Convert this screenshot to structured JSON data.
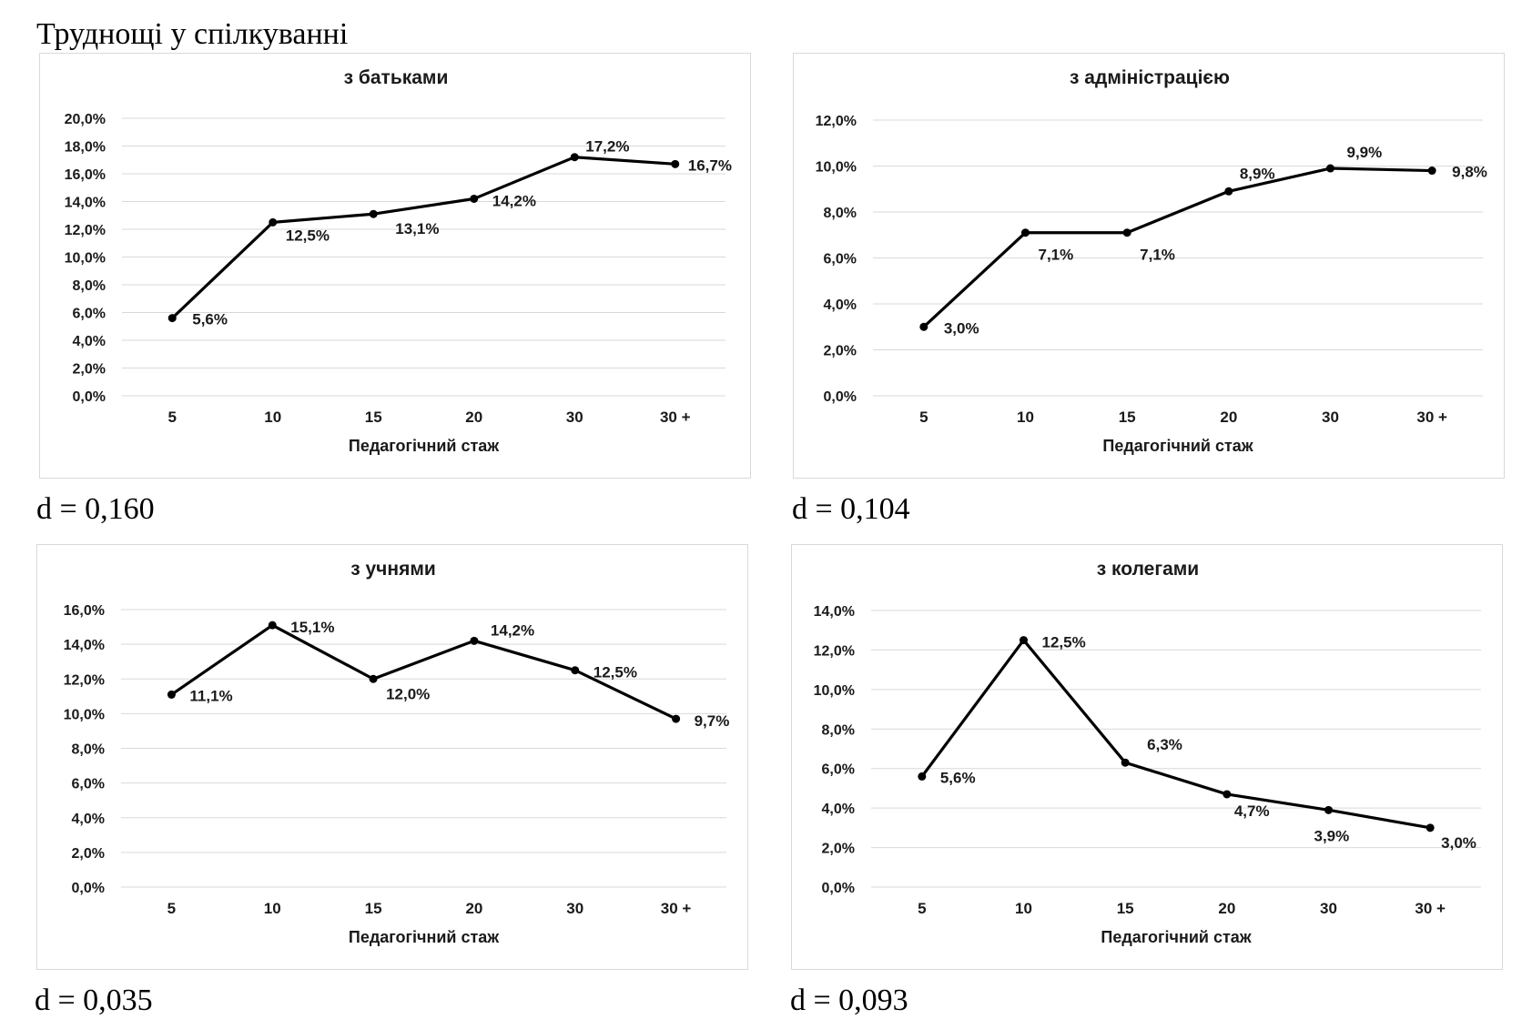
{
  "page_title": "Труднощі у спілкуванні",
  "chart_data": [
    {
      "type": "line",
      "title": "з батьками",
      "xlabel": "Педагогічний стаж",
      "ylabel": "",
      "categories": [
        "5",
        "10",
        "15",
        "20",
        "30",
        "30 +"
      ],
      "values": [
        5.6,
        12.5,
        13.1,
        14.2,
        17.2,
        16.7
      ],
      "data_labels": [
        "5,6%",
        "12,5%",
        "13,1%",
        "14,2%",
        "17,2%",
        "16,7%"
      ],
      "ylim": [
        0,
        20
      ],
      "y_ticks": [
        "0,0%",
        "2,0%",
        "4,0%",
        "6,0%",
        "8,0%",
        "10,0%",
        "12,0%",
        "14,0%",
        "16,0%",
        "18,0%",
        "20,0%"
      ],
      "grid": true,
      "caption": "d = 0,160"
    },
    {
      "type": "line",
      "title": "з адміністрацією",
      "xlabel": "Педагогічний стаж",
      "ylabel": "",
      "categories": [
        "5",
        "10",
        "15",
        "20",
        "30",
        "30 +"
      ],
      "values": [
        3.0,
        7.1,
        7.1,
        8.9,
        9.9,
        9.8
      ],
      "data_labels": [
        "3,0%",
        "7,1%",
        "7,1%",
        "8,9%",
        "9,9%",
        "9,8%"
      ],
      "ylim": [
        0,
        12
      ],
      "y_ticks": [
        "0,0%",
        "2,0%",
        "4,0%",
        "6,0%",
        "8,0%",
        "10,0%",
        "12,0%"
      ],
      "grid": true,
      "caption": "d = 0,104"
    },
    {
      "type": "line",
      "title": "з учнями",
      "xlabel": "Педагогічний стаж",
      "ylabel": "",
      "categories": [
        "5",
        "10",
        "15",
        "20",
        "30",
        "30 +"
      ],
      "values": [
        11.1,
        15.1,
        12.0,
        14.2,
        12.5,
        9.7
      ],
      "data_labels": [
        "11,1%",
        "15,1%",
        "12,0%",
        "14,2%",
        "12,5%",
        "9,7%"
      ],
      "ylim": [
        0,
        16
      ],
      "y_ticks": [
        "0,0%",
        "2,0%",
        "4,0%",
        "6,0%",
        "8,0%",
        "10,0%",
        "12,0%",
        "14,0%",
        "16,0%"
      ],
      "grid": true,
      "caption": "d = 0,035"
    },
    {
      "type": "line",
      "title": "з колегами",
      "xlabel": "Педагогічний стаж",
      "ylabel": "",
      "categories": [
        "5",
        "10",
        "15",
        "20",
        "30",
        "30 +"
      ],
      "values": [
        5.6,
        12.5,
        6.3,
        4.7,
        3.9,
        3.0
      ],
      "data_labels": [
        "5,6%",
        "12,5%",
        "6,3%",
        "4,7%",
        "3,9%",
        "3,0%"
      ],
      "ylim": [
        0,
        14
      ],
      "y_ticks": [
        "0,0%",
        "2,0%",
        "4,0%",
        "6,0%",
        "8,0%",
        "10,0%",
        "12,0%",
        "14,0%"
      ],
      "grid": true,
      "caption": "d = 0,093"
    }
  ]
}
